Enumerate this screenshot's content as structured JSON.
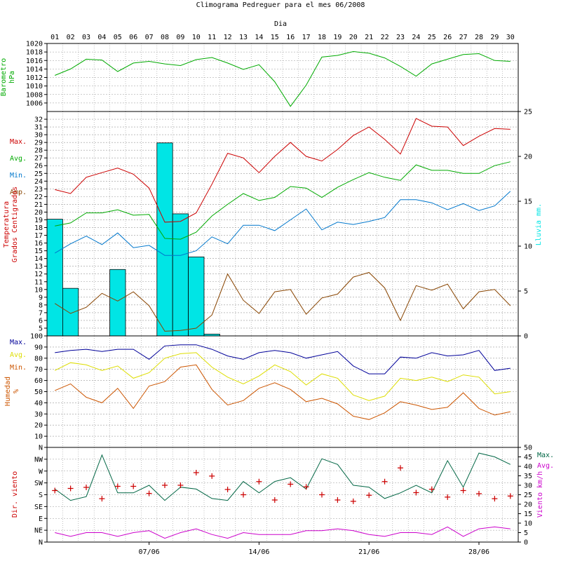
{
  "title": "Climograma Pedreguer para el mes 06/2008",
  "colors": {
    "pressure": "#00aa00",
    "tmax": "#cc0000",
    "tavg": "#00aa00",
    "tmin": "#0077cc",
    "tamp": "#884400",
    "rain_fill": "#00e5e5",
    "hum_max": "#000099",
    "hum_avg": "#dddd00",
    "hum_min": "#cc5500",
    "wind_max": "#006644",
    "wind_avg": "#cc00cc",
    "wind_dir": "#cc0000",
    "grid": "#999999",
    "axis": "#000000"
  },
  "chart_data": {
    "type": "line",
    "x_axis": {
      "label": "Dia",
      "days": [
        "01",
        "02",
        "03",
        "04",
        "05",
        "06",
        "07",
        "08",
        "09",
        "10",
        "11",
        "12",
        "13",
        "14",
        "15",
        "16",
        "17",
        "18",
        "19",
        "20",
        "21",
        "22",
        "23",
        "24",
        "25",
        "26",
        "27",
        "28",
        "29",
        "30"
      ],
      "bottom_labels": [
        {
          "day": 7,
          "text": "07/06"
        },
        {
          "day": 14,
          "text": "14/06"
        },
        {
          "day": 21,
          "text": "21/06"
        },
        {
          "day": 28,
          "text": "28/06"
        }
      ]
    },
    "pressure": {
      "ylabel": "Barometro hPa",
      "ylim": [
        1004,
        1020
      ],
      "ticks": [
        1006,
        1008,
        1010,
        1012,
        1014,
        1016,
        1018,
        1020
      ],
      "values": [
        1012.5,
        1014.0,
        1016.3,
        1016.1,
        1013.4,
        1015.4,
        1015.8,
        1015.2,
        1014.8,
        1016.2,
        1016.7,
        1015.4,
        1013.9,
        1015.0,
        1011.0,
        1005.2,
        1010.2,
        1016.8,
        1017.2,
        1018.1,
        1017.7,
        1016.6,
        1014.6,
        1012.3,
        1015.2,
        1016.3,
        1017.4,
        1017.6,
        1016.0,
        1015.8
      ]
    },
    "temperature": {
      "ylabel": "Temperatura Grados Centigrados",
      "ylim": [
        4,
        33
      ],
      "ticks": [
        5,
        6,
        7,
        8,
        9,
        10,
        11,
        12,
        13,
        14,
        15,
        16,
        17,
        18,
        19,
        20,
        21,
        22,
        23,
        24,
        25,
        26,
        27,
        28,
        29,
        30,
        31,
        32
      ],
      "legend": [
        "Max.",
        "Avg.",
        "Min.",
        "Amp."
      ],
      "series": [
        {
          "name": "Max.",
          "values": [
            22.9,
            22.4,
            24.5,
            25.1,
            25.7,
            24.9,
            23.1,
            18.7,
            18.8,
            19.9,
            23.6,
            27.6,
            27.0,
            25.1,
            27.2,
            29.0,
            27.2,
            26.6,
            28.1,
            29.9,
            31.0,
            29.4,
            27.5,
            32.1,
            31.1,
            31.0,
            28.6,
            29.8,
            30.8,
            30.7
          ]
        },
        {
          "name": "Avg.",
          "values": [
            18.2,
            18.6,
            19.9,
            19.9,
            20.3,
            19.6,
            19.7,
            16.6,
            16.5,
            17.4,
            19.5,
            21.0,
            22.4,
            21.5,
            21.9,
            23.3,
            23.1,
            21.9,
            23.2,
            24.2,
            25.1,
            24.5,
            24.1,
            26.1,
            25.4,
            25.4,
            25.0,
            25.0,
            26.0,
            26.5
          ]
        },
        {
          "name": "Min.",
          "values": [
            14.7,
            15.9,
            16.9,
            15.8,
            17.3,
            15.4,
            15.7,
            14.4,
            14.4,
            15.0,
            16.8,
            15.9,
            18.3,
            18.3,
            17.6,
            19.0,
            20.4,
            17.7,
            18.7,
            18.4,
            18.8,
            19.3,
            21.6,
            21.6,
            21.2,
            20.3,
            21.1,
            20.2,
            20.8,
            22.7
          ]
        },
        {
          "name": "Amp.",
          "values": [
            8.2,
            6.9,
            7.7,
            9.5,
            8.5,
            9.7,
            7.9,
            4.6,
            4.7,
            5.0,
            6.7,
            12.0,
            8.6,
            6.9,
            9.7,
            10.0,
            6.8,
            8.9,
            9.4,
            11.6,
            12.2,
            10.2,
            6.0,
            10.5,
            9.9,
            10.7,
            7.5,
            9.7,
            10.0,
            7.9
          ]
        }
      ]
    },
    "rain": {
      "ylabel": "Lluvia mm.",
      "ylim": [
        0,
        25
      ],
      "ticks": [
        0,
        5,
        10,
        15,
        20,
        25
      ],
      "values": [
        13.0,
        5.3,
        0,
        0,
        7.4,
        0,
        0,
        21.5,
        13.6,
        8.8,
        0.2,
        0,
        0,
        0,
        0,
        0,
        0,
        0,
        0,
        0,
        0,
        0,
        0,
        0,
        0,
        0,
        0,
        0,
        0,
        0
      ]
    },
    "humidity": {
      "ylabel": "Humedad %",
      "ylim": [
        0,
        100
      ],
      "ticks": [
        10,
        20,
        30,
        40,
        50,
        60,
        70,
        80,
        90,
        100
      ],
      "legend": [
        "Max.",
        "Avg.",
        "Min."
      ],
      "series": [
        {
          "name": "Max.",
          "values": [
            85,
            87,
            88,
            86,
            88,
            88,
            79,
            91,
            92,
            92,
            88,
            82,
            79,
            85,
            87,
            85,
            80,
            83,
            86,
            73,
            66,
            66,
            81,
            80,
            85,
            82,
            83,
            87,
            69,
            71
          ]
        },
        {
          "name": "Avg.",
          "values": [
            69,
            76,
            74,
            69,
            73,
            62,
            67,
            80,
            84,
            85,
            72,
            63,
            57,
            64,
            74,
            68,
            56,
            66,
            62,
            47,
            42,
            46,
            62,
            60,
            63,
            59,
            65,
            63,
            48,
            50
          ]
        },
        {
          "name": "Min.",
          "values": [
            51,
            57,
            45,
            40,
            53,
            35,
            55,
            59,
            72,
            74,
            52,
            38,
            42,
            53,
            58,
            52,
            41,
            44,
            39,
            28,
            25,
            31,
            41,
            38,
            34,
            36,
            49,
            35,
            29,
            32
          ]
        }
      ]
    },
    "wind": {
      "ylabel_left": "Dir. viento",
      "ylabel_right": "Viento km/h",
      "dir_ticks": [
        "N",
        "NE",
        "E",
        "SE",
        "S",
        "SW",
        "W",
        "NW",
        "N"
      ],
      "speed_ylim": [
        0,
        50
      ],
      "speed_ticks": [
        0,
        5,
        10,
        15,
        20,
        25,
        30,
        35,
        40,
        45,
        50
      ],
      "legend": [
        "Max.",
        "Avg."
      ],
      "series": [
        {
          "name": "Max.",
          "values": [
            28,
            22,
            24,
            46,
            26,
            26,
            30,
            22,
            29,
            28,
            23,
            22,
            32,
            26,
            32,
            34,
            28,
            44,
            41,
            30,
            29,
            23,
            26,
            30,
            26,
            43,
            29,
            47,
            45,
            41
          ]
        },
        {
          "name": "Avg.",
          "values": [
            5,
            3,
            5,
            5,
            3,
            5,
            6,
            2,
            5,
            7,
            4,
            2,
            5,
            4,
            4,
            4,
            6,
            6,
            7,
            6,
            4,
            3,
            5,
            5,
            4,
            8,
            3,
            7,
            8,
            7
          ]
        }
      ],
      "direction_deg": [
        196,
        204,
        208,
        165,
        212,
        212,
        185,
        216,
        216,
        264,
        251,
        200,
        180,
        230,
        160,
        220,
        210,
        180,
        160,
        155,
        178,
        230,
        282,
        188,
        201,
        171,
        196,
        184,
        165,
        175
      ]
    }
  }
}
